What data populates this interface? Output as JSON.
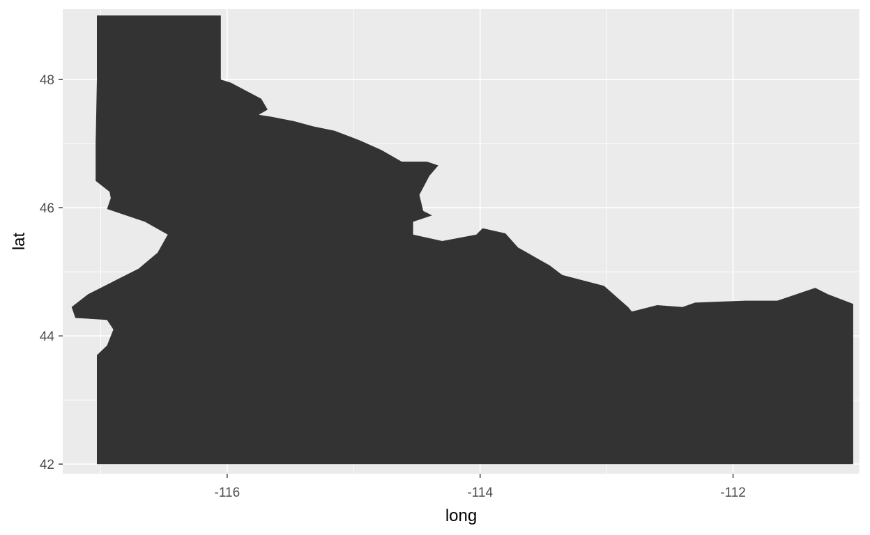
{
  "chart_data": {
    "type": "map",
    "xlabel": "long",
    "ylabel": "lat",
    "xlim": [
      -117.3,
      -111.0
    ],
    "ylim": [
      41.85,
      49.1
    ],
    "x_ticks": [
      -116,
      -114,
      -112
    ],
    "x_tick_labels": [
      "-116",
      "-114",
      "-112"
    ],
    "y_ticks": [
      42,
      44,
      46,
      48
    ],
    "y_tick_labels": [
      "42",
      "44",
      "46",
      "48"
    ],
    "x_minor_ticks": [
      -117,
      -115,
      -113,
      -111
    ],
    "y_minor_ticks": [
      43,
      45,
      47
    ],
    "grid": true,
    "fill_color": "#333333",
    "panel_color": "#ebebeb",
    "grid_color": "#ffffff",
    "series": [
      {
        "polygon": [
          [
            -117.03,
            49.0
          ],
          [
            -116.05,
            49.0
          ],
          [
            -116.05,
            48.0
          ],
          [
            -115.97,
            47.95
          ],
          [
            -115.73,
            47.7
          ],
          [
            -115.68,
            47.53
          ],
          [
            -115.75,
            47.45
          ],
          [
            -115.65,
            47.42
          ],
          [
            -115.47,
            47.35
          ],
          [
            -115.32,
            47.27
          ],
          [
            -115.15,
            47.2
          ],
          [
            -114.95,
            47.05
          ],
          [
            -114.78,
            46.9
          ],
          [
            -114.62,
            46.72
          ],
          [
            -114.42,
            46.72
          ],
          [
            -114.33,
            46.66
          ],
          [
            -114.4,
            46.5
          ],
          [
            -114.48,
            46.2
          ],
          [
            -114.45,
            45.95
          ],
          [
            -114.38,
            45.88
          ],
          [
            -114.53,
            45.78
          ],
          [
            -114.53,
            45.58
          ],
          [
            -114.3,
            45.48
          ],
          [
            -114.03,
            45.58
          ],
          [
            -113.98,
            45.68
          ],
          [
            -113.8,
            45.6
          ],
          [
            -113.7,
            45.38
          ],
          [
            -113.45,
            45.1
          ],
          [
            -113.35,
            44.95
          ],
          [
            -113.02,
            44.78
          ],
          [
            -112.83,
            44.45
          ],
          [
            -112.8,
            44.38
          ],
          [
            -112.6,
            44.48
          ],
          [
            -112.4,
            44.45
          ],
          [
            -112.3,
            44.52
          ],
          [
            -111.9,
            44.55
          ],
          [
            -111.65,
            44.55
          ],
          [
            -111.35,
            44.75
          ],
          [
            -111.25,
            44.65
          ],
          [
            -111.05,
            44.5
          ],
          [
            -111.05,
            42.0
          ],
          [
            -114.0,
            42.0
          ],
          [
            -117.03,
            42.0
          ],
          [
            -117.03,
            43.7
          ],
          [
            -116.95,
            43.85
          ],
          [
            -116.9,
            44.1
          ],
          [
            -116.95,
            44.25
          ],
          [
            -117.2,
            44.28
          ],
          [
            -117.23,
            44.45
          ],
          [
            -117.1,
            44.65
          ],
          [
            -117.0,
            44.75
          ],
          [
            -116.85,
            44.9
          ],
          [
            -116.7,
            45.05
          ],
          [
            -116.55,
            45.3
          ],
          [
            -116.47,
            45.58
          ],
          [
            -116.65,
            45.78
          ],
          [
            -116.95,
            45.98
          ],
          [
            -116.92,
            46.15
          ],
          [
            -116.93,
            46.25
          ],
          [
            -117.04,
            46.42
          ],
          [
            -117.04,
            47.0
          ],
          [
            -117.03,
            48.0
          ]
        ]
      }
    ]
  }
}
